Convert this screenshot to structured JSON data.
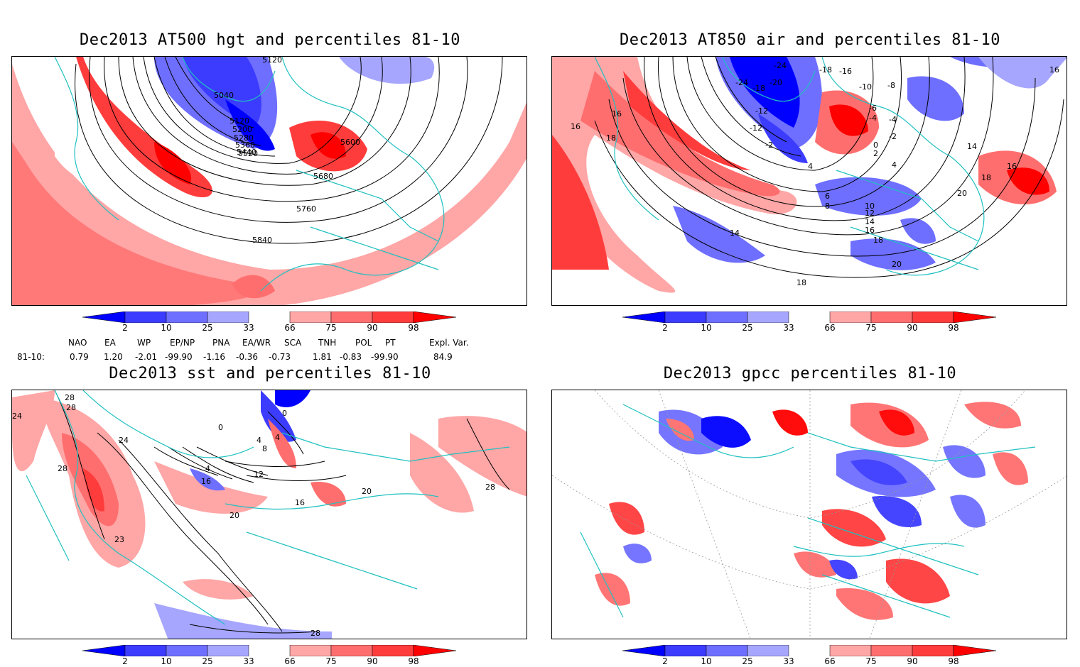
{
  "panels": [
    {
      "id": "p1",
      "title": "Dec2013 AT500 hgt and percentiles 81-10",
      "contour_labels": [
        "5120",
        "5040",
        "5120",
        "5200",
        "5280",
        "5360",
        "5440",
        "5520",
        "5600",
        "5680",
        "5760",
        "5840"
      ]
    },
    {
      "id": "p2",
      "title": "Dec2013 AT850 air and percentiles 81-10",
      "contour_labels": [
        "-24",
        "-18",
        "-16",
        "-24",
        "-18",
        "-20",
        "-10",
        "-8",
        "-12",
        "-6",
        "-4",
        "-12",
        "-2",
        "-4",
        "-2",
        "0",
        "2",
        "4",
        "4",
        "14",
        "16",
        "16",
        "18",
        "18",
        "16",
        "20",
        "6",
        "8",
        "10",
        "12",
        "14",
        "16",
        "18",
        "20",
        "14",
        "18",
        "16"
      ]
    },
    {
      "id": "p3",
      "title": "Dec2013 sst and percentiles 81-10",
      "contour_labels": [
        "28",
        "28",
        "24",
        "24",
        "28",
        "0",
        "0",
        "4",
        "4",
        "8",
        "4",
        "12",
        "16",
        "20",
        "16",
        "20",
        "23",
        "28",
        "28"
      ]
    },
    {
      "id": "p4",
      "title": "Dec2013 gpcc percentiles 81-10",
      "contour_labels": []
    }
  ],
  "colorbar": {
    "ticks": [
      "2",
      "10",
      "25",
      "33",
      "66",
      "75",
      "90",
      "98"
    ],
    "colors": [
      "#0000ff",
      "#3c3cff",
      "#6e6eff",
      "#a6a6ff",
      "#ffffff",
      "#ffa6a6",
      "#ff6e6e",
      "#ff3c3c",
      "#ff0000"
    ]
  },
  "indices": {
    "headers": [
      "NAO",
      "EA",
      "WP",
      "EP/NP",
      "PNA",
      "EA/WR",
      "SCA",
      "TNH",
      "POL",
      "PT",
      "Expl. Var."
    ],
    "row_label": "81-10:",
    "values": [
      "0.79",
      "1.20",
      "-2.01",
      "-99.90",
      "-1.16",
      "-0.36",
      "-0.73",
      "1.81",
      "-0.83",
      "-99.90",
      "84.9"
    ]
  },
  "colors": {
    "coast": "#20c0c0",
    "pos1": "#ffa6a6",
    "pos2": "#ff6e6e",
    "pos3": "#ff3c3c",
    "neg1": "#a6a6ff",
    "neg2": "#6e6eff",
    "neg3": "#3c3cff"
  }
}
